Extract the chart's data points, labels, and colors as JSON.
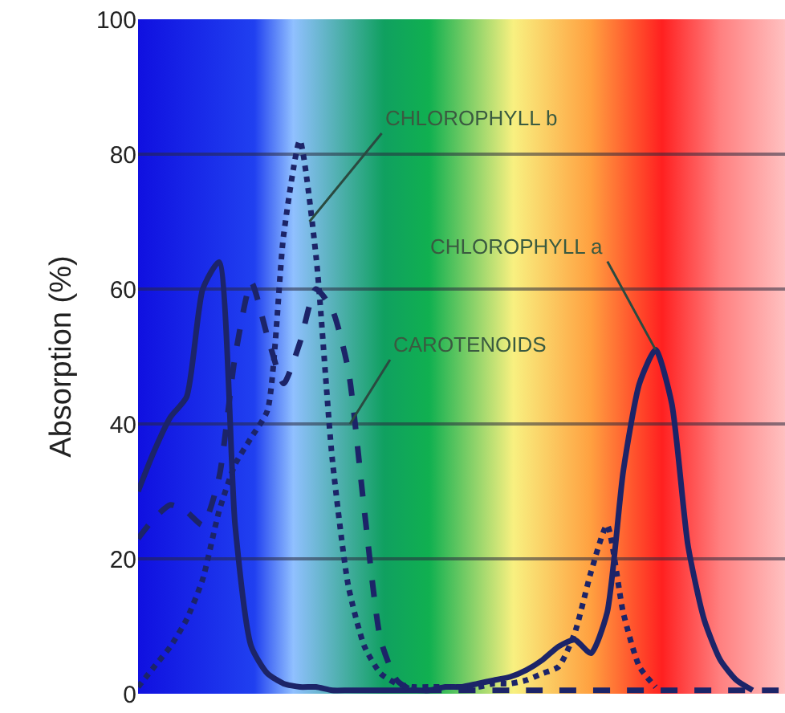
{
  "chart_data": {
    "type": "line",
    "ylabel": "Absorption (%)",
    "categories": [
      null,
      null,
      null,
      null,
      null,
      null,
      null,
      null,
      null,
      null,
      null,
      null,
      null,
      null,
      null,
      null,
      null,
      null,
      null,
      null,
      null,
      null,
      null,
      null,
      null,
      null,
      null,
      null,
      null,
      null,
      null,
      null,
      null,
      null,
      null,
      null,
      null,
      null,
      null,
      null,
      null
    ],
    "series": [
      {
        "color": "#1c2468",
        "line_style": "solid",
        "values": [
          30,
          36,
          41,
          44,
          60,
          64,
          25,
          7,
          3,
          1.5,
          1,
          1,
          0.5,
          0.5,
          0.5,
          0.5,
          0.5,
          0.5,
          0.5,
          1,
          1,
          1.5,
          2,
          2.5,
          3.5,
          5,
          7,
          8,
          6,
          12,
          33,
          46,
          51,
          43,
          22,
          11,
          5,
          2,
          0.5,
          null,
          null
        ]
      },
      {
        "color": "#1c2468",
        "line_style": "dashed",
        "values": [
          23,
          26,
          28,
          27,
          25,
          32,
          50,
          61,
          53,
          46,
          52,
          60,
          57,
          48,
          27,
          8,
          2,
          0.5,
          0.5,
          0.5,
          0.5,
          0.5,
          0.5,
          0.5,
          0.5,
          0.5,
          0.5,
          0.5,
          0.5,
          0.5,
          0.5,
          0.5,
          0.5,
          0.5,
          0.5,
          0.5,
          0.5,
          0.5,
          0.5,
          0.5,
          0.5
        ]
      },
      {
        "color": "#1c2468",
        "line_style": "dotted",
        "values": [
          1,
          4,
          7,
          11,
          17,
          27,
          34,
          38,
          42,
          68,
          82,
          65,
          35,
          16,
          7,
          3,
          1.5,
          1,
          1,
          1,
          1,
          1,
          1.5,
          1.5,
          2,
          3,
          4,
          9,
          18,
          25,
          12,
          4,
          1,
          null,
          null,
          null,
          null,
          null,
          null,
          null,
          null
        ]
      }
    ],
    "annotations": [
      "CHLOROPHYLL b",
      "CAROTENOIDS",
      "CHLOROPHYLL a"
    ],
    "ylim": [
      0,
      100
    ],
    "yticks": [
      0,
      20,
      40,
      60,
      80,
      100
    ],
    "grid": "y"
  }
}
